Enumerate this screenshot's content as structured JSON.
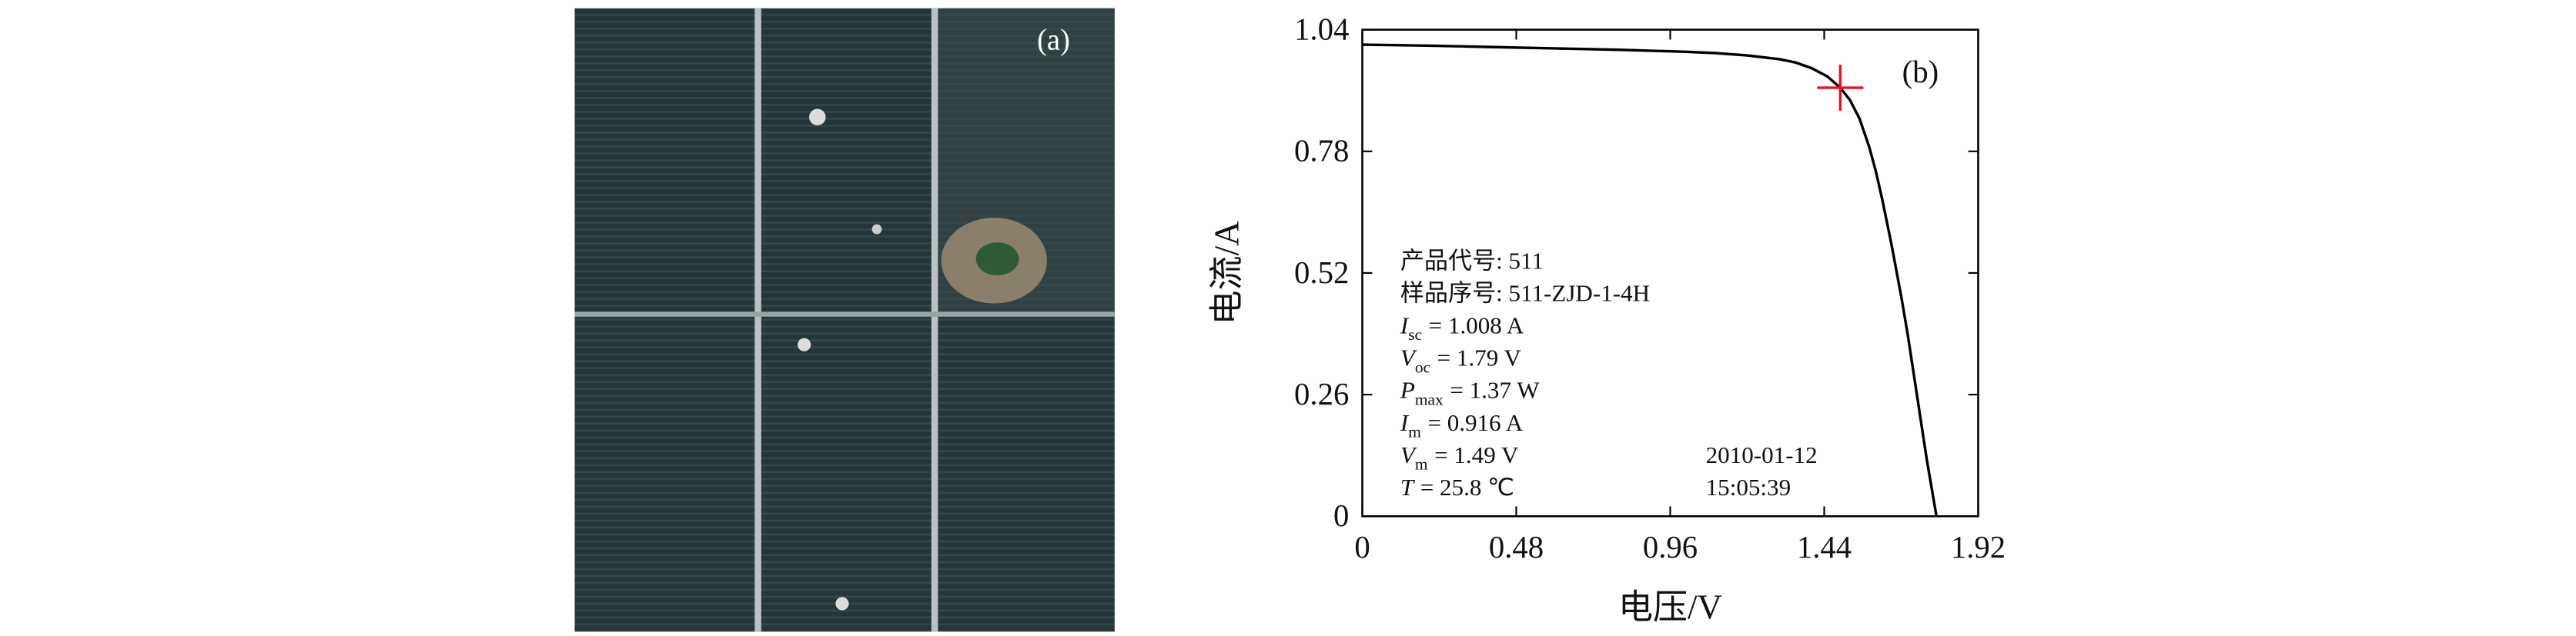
{
  "panel_a": {
    "label": "(a)"
  },
  "chart_data": {
    "type": "line",
    "panel_label": "(b)",
    "x_label": "电压/V",
    "y_label": "电流/A",
    "x": [
      0,
      0.2,
      0.4,
      0.6,
      0.8,
      1.0,
      1.1,
      1.2,
      1.3,
      1.35,
      1.4,
      1.45,
      1.49,
      1.52,
      1.55,
      1.58,
      1.6,
      1.62,
      1.65,
      1.68,
      1.7,
      1.72,
      1.74,
      1.76,
      1.78,
      1.79
    ],
    "series": [
      {
        "color": "#000000",
        "values": [
          1.008,
          1.006,
          1.003,
          1.0,
          0.997,
          0.993,
          0.99,
          0.985,
          0.977,
          0.97,
          0.958,
          0.94,
          0.916,
          0.89,
          0.85,
          0.79,
          0.74,
          0.68,
          0.58,
          0.47,
          0.39,
          0.3,
          0.21,
          0.12,
          0.04,
          0
        ]
      }
    ],
    "marker": {
      "x": 1.49,
      "y": 0.916,
      "color": "#e8141c"
    },
    "xlim": [
      0,
      1.92
    ],
    "xticks": [
      0,
      0.48,
      0.96,
      1.44,
      1.92
    ],
    "ylim": [
      0,
      1.04
    ],
    "yticks": [
      0,
      0.26,
      0.52,
      0.78,
      1.04
    ],
    "annotations": [
      {
        "text": "产品代号: 511"
      },
      {
        "text": "样品序号: 511-ZJD-1-4H"
      },
      {
        "symbol": "I",
        "sub": "sc",
        "text": "= 1.008 A"
      },
      {
        "symbol": "V",
        "sub": "oc",
        "text": "= 1.79 V"
      },
      {
        "symbol": "P",
        "sub": "max",
        "text": "= 1.37 W"
      },
      {
        "symbol": "I",
        "sub": "m",
        "text": "= 0.916 A"
      },
      {
        "symbol": "V",
        "sub": "m",
        "text": "= 1.49 V"
      },
      {
        "symbol": "T",
        "text": "= 25.8 ℃"
      }
    ],
    "date": "2010-01-12",
    "time": "15:05:39"
  }
}
